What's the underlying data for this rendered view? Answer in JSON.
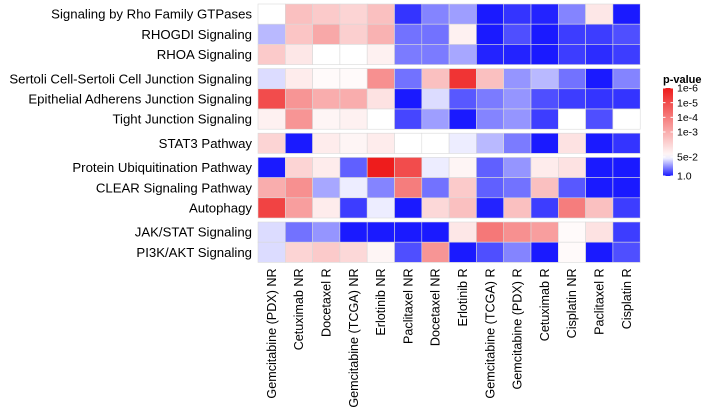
{
  "chart_data": {
    "type": "heatmap",
    "title": "",
    "rows": [
      "Signaling by Rho Family GTPases",
      "RHOGDI Signaling",
      "RHOA Signaling",
      "Sertoli Cell-Sertoli Cell Junction Signaling",
      "Epithelial Adherens Junction Signaling",
      "Tight Junction Signaling",
      "STAT3 Pathway",
      "Protein Ubiquitination Pathway",
      "CLEAR Signaling Pathway",
      "Autophagy",
      "JAK/STAT Signaling",
      "PI3K/AKT Signaling"
    ],
    "row_groups": [
      3,
      3,
      1,
      3,
      2
    ],
    "columns": [
      "Gemcitabine (PDX) NR",
      "Cetuximab NR",
      "Docetaxel R",
      "Gemcitabine (TCGA) NR",
      "Erlotinib NR",
      "Paclitaxel NR",
      "Docetaxel NR",
      "Erlotinib R",
      "Gemcitabine (TCGA) R",
      "Gemcitabine (PDX) R",
      "Cetuximab R",
      "Cisplatin NR",
      "Paclitaxel R",
      "Cisplatin R"
    ],
    "values_neglog10_p": [
      [
        1.3,
        2.6,
        2.4,
        2.2,
        2.6,
        0.15,
        0.6,
        0.75,
        0.0,
        0.15,
        0.05,
        0.6,
        1.8,
        0.0
      ],
      [
        0.9,
        2.5,
        3.1,
        2.3,
        2.9,
        0.5,
        0.5,
        1.6,
        0.0,
        0.3,
        0.0,
        0.2,
        0.2,
        0.3
      ],
      [
        2.4,
        1.8,
        1.3,
        1.3,
        1.6,
        0.55,
        0.55,
        0.8,
        0.05,
        0.05,
        0.0,
        0.2,
        0.1,
        0.2
      ],
      [
        1.1,
        1.7,
        1.4,
        1.4,
        3.6,
        0.5,
        2.6,
        5.5,
        2.6,
        0.7,
        0.9,
        0.5,
        0.0,
        0.6
      ],
      [
        5.0,
        3.5,
        3.0,
        3.0,
        1.9,
        0.0,
        1.1,
        0.35,
        0.55,
        0.7,
        0.3,
        0.2,
        0.15,
        0.15
      ],
      [
        1.6,
        3.5,
        1.5,
        1.6,
        1.3,
        0.25,
        0.75,
        0.0,
        0.6,
        0.7,
        0.2,
        1.3,
        0.3,
        1.3
      ],
      [
        2.2,
        0.0,
        1.7,
        1.5,
        1.7,
        1.3,
        1.3,
        1.2,
        0.9,
        0.55,
        0.0,
        1.9,
        0.0,
        0.15
      ],
      [
        0.0,
        2.2,
        1.7,
        0.4,
        6.0,
        5.0,
        1.2,
        1.5,
        0.4,
        0.7,
        1.7,
        1.9,
        0.0,
        0.0
      ],
      [
        3.0,
        3.6,
        0.8,
        1.2,
        0.6,
        4.0,
        0.5,
        2.4,
        0.4,
        0.5,
        2.6,
        0.35,
        0.0,
        0.0
      ],
      [
        5.2,
        3.3,
        1.7,
        0.2,
        1.2,
        0.0,
        2.1,
        2.6,
        0.05,
        2.6,
        0.2,
        4.0,
        2.6,
        0.2
      ],
      [
        1.1,
        0.5,
        0.7,
        0.0,
        0.0,
        0.0,
        0.0,
        1.8,
        4.1,
        3.6,
        3.3,
        1.4,
        1.9,
        0.2
      ],
      [
        1.1,
        2.2,
        2.4,
        2.1,
        1.5,
        0.3,
        3.5,
        0.0,
        0.3,
        0.6,
        0.0,
        1.4,
        0.0,
        0.3
      ]
    ],
    "legend": {
      "title": "p-value",
      "ticks": [
        "1e-6",
        "1e-5",
        "1e-4",
        "1e-3",
        "5e-2",
        "1.0"
      ],
      "tick_neglog10": [
        6,
        5,
        4,
        3,
        1.3,
        0
      ],
      "placement": "right"
    },
    "colors": {
      "low": "#1a1aff",
      "mid": "#ffffff",
      "high": "#ee1c1c",
      "mid_value": 1.3,
      "max_value": 6
    }
  }
}
